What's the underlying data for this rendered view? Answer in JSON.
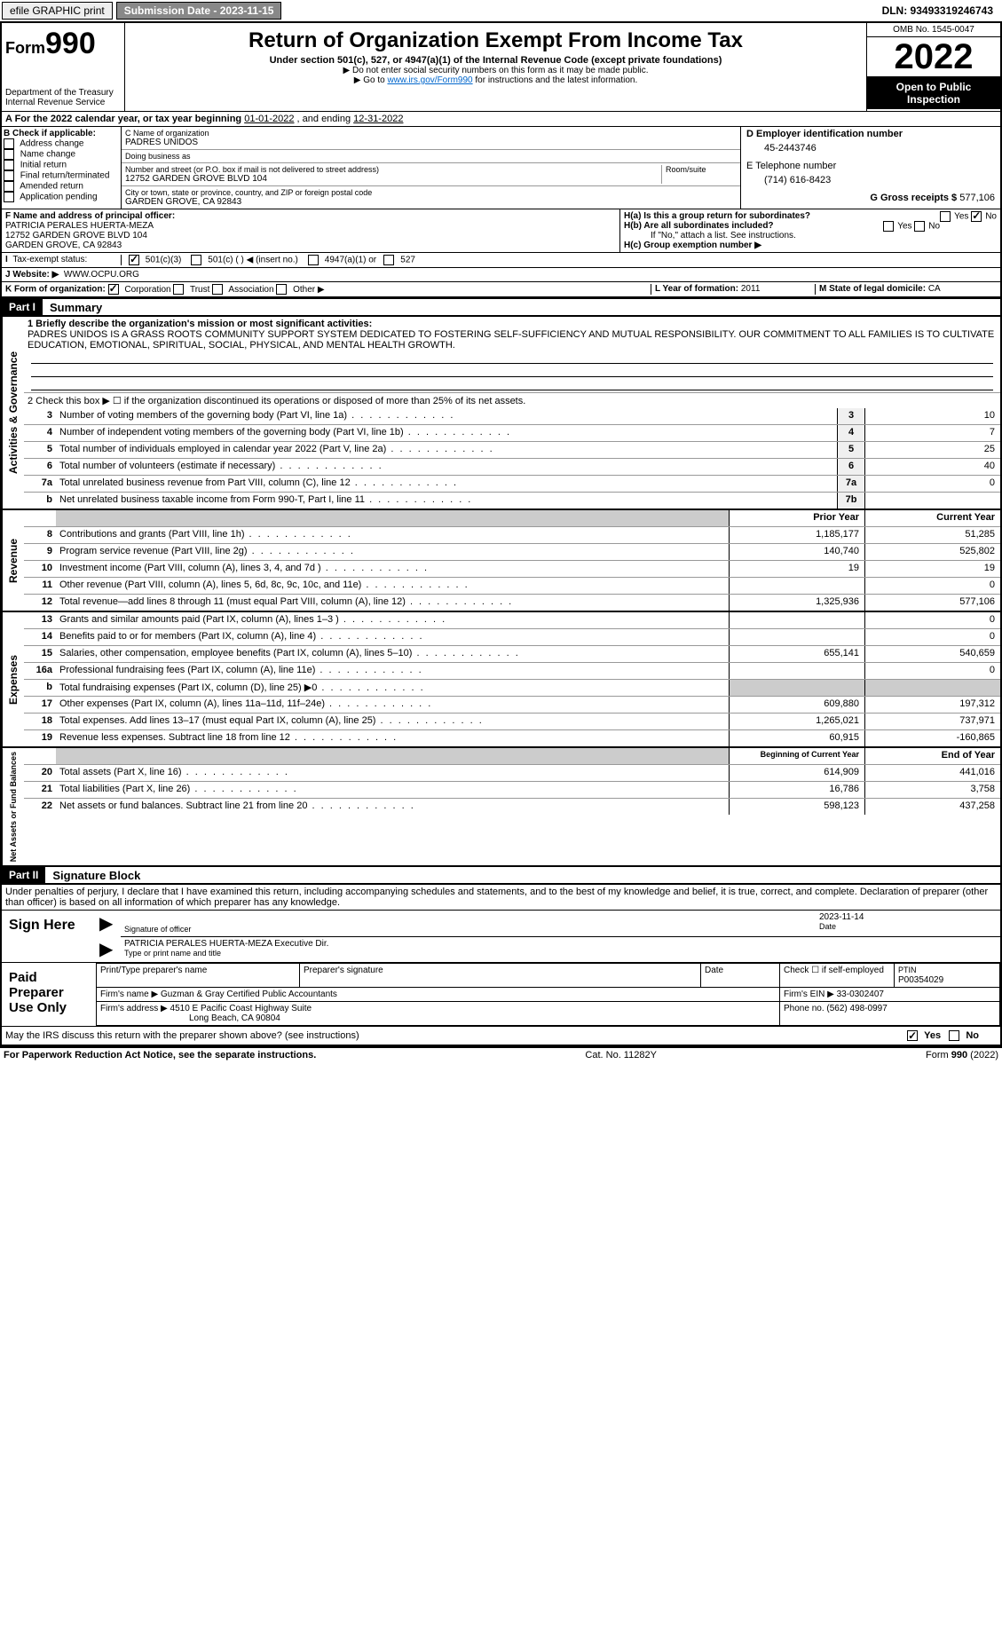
{
  "topbar": {
    "efile": "efile GRAPHIC print",
    "submission_label": "Submission Date - 2023-11-15",
    "dln": "DLN: 93493319246743"
  },
  "header": {
    "form_label": "Form",
    "form_number": "990",
    "dept": "Department of the Treasury",
    "irs": "Internal Revenue Service",
    "title": "Return of Organization Exempt From Income Tax",
    "subtitle": "Under section 501(c), 527, or 4947(a)(1) of the Internal Revenue Code (except private foundations)",
    "note1": "▶ Do not enter social security numbers on this form as it may be made public.",
    "note2_pre": "▶ Go to ",
    "note2_link": "www.irs.gov/Form990",
    "note2_post": " for instructions and the latest information.",
    "omb": "OMB No. 1545-0047",
    "year": "2022",
    "open": "Open to Public Inspection"
  },
  "rowA": {
    "pre": "A For the 2022 calendar year, or tax year beginning ",
    "begin": "01-01-2022",
    "mid": " , and ending ",
    "end": "12-31-2022"
  },
  "colB": {
    "title": "B Check if applicable:",
    "opts": [
      "Address change",
      "Name change",
      "Initial return",
      "Final return/terminated",
      "Amended return",
      "Application pending"
    ]
  },
  "colC": {
    "name_label": "C Name of organization",
    "name": "PADRES UNIDOS",
    "dba_label": "Doing business as",
    "dba": "",
    "street_label": "Number and street (or P.O. box if mail is not delivered to street address)",
    "room_label": "Room/suite",
    "street": "12752 GARDEN GROVE BLVD 104",
    "city_label": "City or town, state or province, country, and ZIP or foreign postal code",
    "city": "GARDEN GROVE, CA  92843"
  },
  "colD": {
    "d_label": "D Employer identification number",
    "ein": "45-2443746",
    "e_label": "E Telephone number",
    "phone": "(714) 616-8423",
    "g_label": "G Gross receipts $",
    "gross": "577,106"
  },
  "rowF": {
    "label": "F  Name and address of principal officer:",
    "name": "PATRICIA PERALES HUERTA-MEZA",
    "addr1": "12752 GARDEN GROVE BLVD 104",
    "addr2": "GARDEN GROVE, CA  92843"
  },
  "rowH": {
    "ha": "H(a)  Is this a group return for subordinates?",
    "hb": "H(b)  Are all subordinates included?",
    "hb_note": "If \"No,\" attach a list. See instructions.",
    "hc": "H(c)  Group exemption number ▶",
    "yes": "Yes",
    "no": "No"
  },
  "rowI": {
    "label": "Tax-exempt status:",
    "opt1": "501(c)(3)",
    "opt2": "501(c) (   ) ◀ (insert no.)",
    "opt3": "4947(a)(1) or",
    "opt4": "527"
  },
  "rowJ": {
    "label": "J   Website: ▶",
    "val": "WWW.OCPU.ORG"
  },
  "rowK": {
    "label": "K Form of organization:",
    "opts": [
      "Corporation",
      "Trust",
      "Association",
      "Other ▶"
    ],
    "l_label": "L Year of formation:",
    "l_val": "2011",
    "m_label": "M State of legal domicile:",
    "m_val": "CA"
  },
  "partI": {
    "header": "Part I",
    "title": "Summary",
    "q1": "1   Briefly describe the organization's mission or most significant activities:",
    "mission": "PADRES UNIDOS IS A GRASS ROOTS COMMUNITY SUPPORT SYSTEM DEDICATED TO FOSTERING SELF-SUFFICIENCY AND MUTUAL RESPONSIBILITY. OUR COMMITMENT TO ALL FAMILIES IS TO CULTIVATE EDUCATION, EMOTIONAL, SPIRITUAL, SOCIAL, PHYSICAL, AND MENTAL HEALTH GROWTH.",
    "q2": "2   Check this box ▶ ☐  if the organization discontinued its operations or disposed of more than 25% of its net assets."
  },
  "sections": {
    "governance_label": "Activities & Governance",
    "revenue_label": "Revenue",
    "expenses_label": "Expenses",
    "netassets_label": "Net Assets or Fund Balances"
  },
  "governance_rows": [
    {
      "n": "3",
      "d": "Number of voting members of the governing body (Part VI, line 1a)",
      "box": "3",
      "v": "10"
    },
    {
      "n": "4",
      "d": "Number of independent voting members of the governing body (Part VI, line 1b)",
      "box": "4",
      "v": "7"
    },
    {
      "n": "5",
      "d": "Total number of individuals employed in calendar year 2022 (Part V, line 2a)",
      "box": "5",
      "v": "25"
    },
    {
      "n": "6",
      "d": "Total number of volunteers (estimate if necessary)",
      "box": "6",
      "v": "40"
    },
    {
      "n": "7a",
      "d": "Total unrelated business revenue from Part VIII, column (C), line 12",
      "box": "7a",
      "v": "0"
    },
    {
      "n": "b",
      "d": "Net unrelated business taxable income from Form 990-T, Part I, line 11",
      "box": "7b",
      "v": ""
    }
  ],
  "two_col_header": {
    "prior": "Prior Year",
    "current": "Current Year"
  },
  "revenue_rows": [
    {
      "n": "8",
      "d": "Contributions and grants (Part VIII, line 1h)",
      "p": "1,185,177",
      "c": "51,285"
    },
    {
      "n": "9",
      "d": "Program service revenue (Part VIII, line 2g)",
      "p": "140,740",
      "c": "525,802"
    },
    {
      "n": "10",
      "d": "Investment income (Part VIII, column (A), lines 3, 4, and 7d )",
      "p": "19",
      "c": "19"
    },
    {
      "n": "11",
      "d": "Other revenue (Part VIII, column (A), lines 5, 6d, 8c, 9c, 10c, and 11e)",
      "p": "",
      "c": "0"
    },
    {
      "n": "12",
      "d": "Total revenue—add lines 8 through 11 (must equal Part VIII, column (A), line 12)",
      "p": "1,325,936",
      "c": "577,106"
    }
  ],
  "expense_rows": [
    {
      "n": "13",
      "d": "Grants and similar amounts paid (Part IX, column (A), lines 1–3 )",
      "p": "",
      "c": "0"
    },
    {
      "n": "14",
      "d": "Benefits paid to or for members (Part IX, column (A), line 4)",
      "p": "",
      "c": "0"
    },
    {
      "n": "15",
      "d": "Salaries, other compensation, employee benefits (Part IX, column (A), lines 5–10)",
      "p": "655,141",
      "c": "540,659"
    },
    {
      "n": "16a",
      "d": "Professional fundraising fees (Part IX, column (A), line 11e)",
      "p": "",
      "c": "0"
    },
    {
      "n": "b",
      "d": "Total fundraising expenses (Part IX, column (D), line 25) ▶0",
      "p": "shaded",
      "c": "shaded"
    },
    {
      "n": "17",
      "d": "Other expenses (Part IX, column (A), lines 11a–11d, 11f–24e)",
      "p": "609,880",
      "c": "197,312"
    },
    {
      "n": "18",
      "d": "Total expenses. Add lines 13–17 (must equal Part IX, column (A), line 25)",
      "p": "1,265,021",
      "c": "737,971"
    },
    {
      "n": "19",
      "d": "Revenue less expenses. Subtract line 18 from line 12",
      "p": "60,915",
      "c": "-160,865"
    }
  ],
  "netassets_header": {
    "prior": "Beginning of Current Year",
    "current": "End of Year"
  },
  "netassets_rows": [
    {
      "n": "20",
      "d": "Total assets (Part X, line 16)",
      "p": "614,909",
      "c": "441,016"
    },
    {
      "n": "21",
      "d": "Total liabilities (Part X, line 26)",
      "p": "16,786",
      "c": "3,758"
    },
    {
      "n": "22",
      "d": "Net assets or fund balances. Subtract line 21 from line 20",
      "p": "598,123",
      "c": "437,258"
    }
  ],
  "partII": {
    "header": "Part II",
    "title": "Signature Block",
    "declare": "Under penalties of perjury, I declare that I have examined this return, including accompanying schedules and statements, and to the best of my knowledge and belief, it is true, correct, and complete. Declaration of preparer (other than officer) is based on all information of which preparer has any knowledge."
  },
  "sign": {
    "here": "Sign Here",
    "sig_label": "Signature of officer",
    "date_label": "Date",
    "date": "2023-11-14",
    "name": "PATRICIA PERALES HUERTA-MEZA  Executive Dir.",
    "name_label": "Type or print name and title"
  },
  "preparer": {
    "label": "Paid Preparer Use Only",
    "h1": "Print/Type preparer's name",
    "h2": "Preparer's signature",
    "h3": "Date",
    "h4_label": "Check ☐ if self-employed",
    "ptin_label": "PTIN",
    "ptin": "P00354029",
    "firm_name_label": "Firm's name    ▶",
    "firm_name": "Guzman & Gray Certified Public Accountants",
    "firm_ein_label": "Firm's EIN ▶",
    "firm_ein": "33-0302407",
    "firm_addr_label": "Firm's address ▶",
    "firm_addr": "4510 E Pacific Coast Highway Suite",
    "firm_addr2": "Long Beach, CA  90804",
    "phone_label": "Phone no.",
    "phone": "(562) 498-0997"
  },
  "discuss": {
    "q": "May the IRS discuss this return with the preparer shown above? (see instructions)",
    "yes": "Yes",
    "no": "No"
  },
  "footer": {
    "left": "For Paperwork Reduction Act Notice, see the separate instructions.",
    "mid": "Cat. No. 11282Y",
    "right_label": "Form ",
    "right_num": "990",
    "right_year": " (2022)"
  }
}
